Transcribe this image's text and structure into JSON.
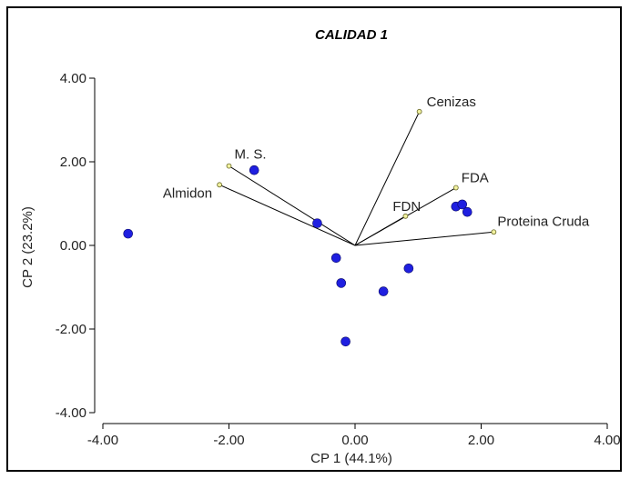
{
  "chart_data": {
    "type": "scatter",
    "title": "CALIDAD 1",
    "xlabel": "CP 1 (44.1%)",
    "ylabel": "CP 2 (23.2%)",
    "xlim": [
      -4.0,
      4.0
    ],
    "ylim": [
      -4.0,
      4.0
    ],
    "xticks": [
      "-4.00",
      "-2.00",
      "0.00",
      "2.00",
      "4.00"
    ],
    "yticks": [
      "4.00",
      "2.00",
      "0.00",
      "-2.00",
      "-4.00"
    ],
    "grid": false,
    "points": [
      {
        "x": -3.6,
        "y": 0.28
      },
      {
        "x": -1.6,
        "y": 1.8
      },
      {
        "x": -0.6,
        "y": 0.53
      },
      {
        "x": -0.3,
        "y": -0.3
      },
      {
        "x": -0.22,
        "y": -0.9
      },
      {
        "x": -0.15,
        "y": -2.3
      },
      {
        "x": 0.45,
        "y": -1.1
      },
      {
        "x": 0.85,
        "y": -0.55
      },
      {
        "x": 1.6,
        "y": 0.93
      },
      {
        "x": 1.7,
        "y": 0.98
      },
      {
        "x": 1.78,
        "y": 0.8
      }
    ],
    "vectors": [
      {
        "label": "Cenizas",
        "x": 1.02,
        "y": 3.2
      },
      {
        "label": "M. S.",
        "x": -2.0,
        "y": 1.9
      },
      {
        "label": "Almidon",
        "x": -2.15,
        "y": 1.45
      },
      {
        "label": "FDA",
        "x": 1.6,
        "y": 1.38
      },
      {
        "label": "FDN",
        "x": 0.8,
        "y": 0.7
      },
      {
        "label": "Proteina Cruda",
        "x": 2.2,
        "y": 0.32
      }
    ],
    "colors": {
      "points": "#1f1fe0",
      "vector_tip": "#f2f2a0"
    }
  }
}
